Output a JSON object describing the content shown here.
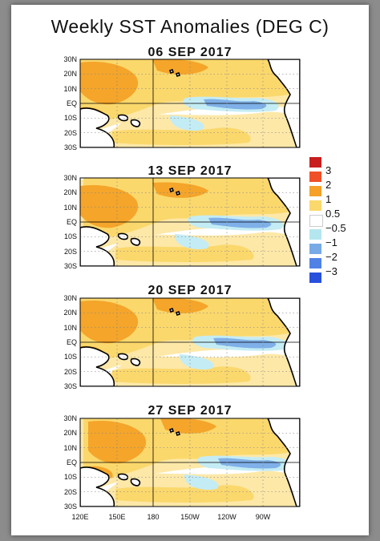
{
  "title": "Weekly SST Anomalies (DEG C)",
  "panels": [
    {
      "date": "06 SEP 2017"
    },
    {
      "date": "13 SEP 2017"
    },
    {
      "date": "20 SEP 2017"
    },
    {
      "date": "27 SEP 2017"
    }
  ],
  "lat_labels": [
    "30N",
    "20N",
    "10N",
    "EQ",
    "10S",
    "20S",
    "30S"
  ],
  "lon_labels": [
    "120E",
    "150E",
    "180",
    "150W",
    "120W",
    "90W"
  ],
  "legend": {
    "labels": [
      "3",
      "2",
      "1",
      "0.5",
      "−0.5",
      "−1",
      "−2",
      "−3"
    ],
    "colors": [
      "#c81e1e",
      "#f05028",
      "#f5a028",
      "#fbd86c",
      "#ffffff",
      "#b4e6f0",
      "#78aae6",
      "#5082e6",
      "#2850dc"
    ]
  },
  "colors": {
    "warm_weak": "#fde8a8",
    "warm_mid": "#fbd86c",
    "warm_strong": "#f4a52a",
    "cool_weak": "#c4ecf5",
    "cool_mid": "#7fb0e8",
    "land": "#ffffff",
    "coast": "#000000"
  }
}
